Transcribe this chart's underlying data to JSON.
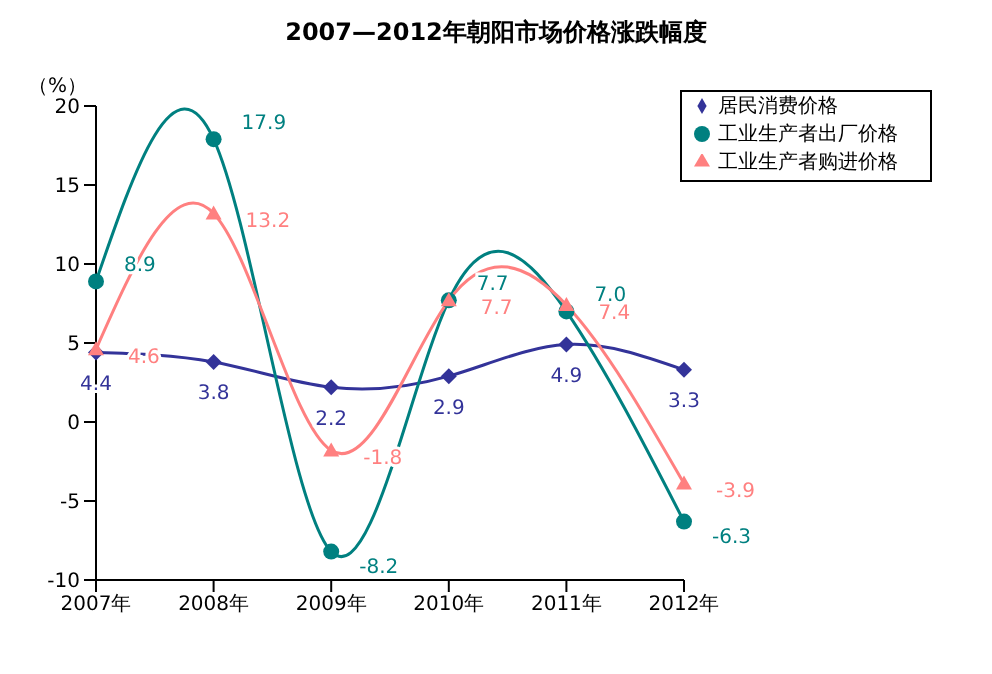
{
  "chart_data": {
    "type": "line",
    "title": "2007—2012年朝阳市场价格涨跌幅度",
    "ylabel": "（%）",
    "categories": [
      "2007年",
      "2008年",
      "2009年",
      "2010年",
      "2011年",
      "2012年"
    ],
    "series": [
      {
        "name": "居民消费价格",
        "color": "#333399",
        "marker": "diamond",
        "values": [
          4.4,
          3.8,
          2.2,
          2.9,
          4.9,
          3.3
        ],
        "value_labels": [
          "4.4",
          "3.8",
          "2.2",
          "2.9",
          "4.9",
          "3.3"
        ]
      },
      {
        "name": "工业生产者出厂价格",
        "color": "#008080",
        "marker": "circle",
        "values": [
          8.9,
          17.9,
          -8.2,
          7.7,
          7.0,
          -6.3
        ],
        "value_labels": [
          "8.9",
          "17.9",
          "-8.2",
          "7.7",
          "7.0",
          "-6.3"
        ]
      },
      {
        "name": "工业生产者购进价格",
        "color": "#ff8080",
        "marker": "triangle",
        "values": [
          4.6,
          13.2,
          -1.8,
          7.7,
          7.4,
          -3.9
        ],
        "value_labels": [
          "4.6",
          "13.2",
          "-1.8",
          "7.7",
          "7.4",
          "-3.9"
        ]
      }
    ],
    "ylim": [
      -10,
      20
    ],
    "yticks": [
      -10,
      -5,
      0,
      5,
      10,
      15,
      20
    ],
    "legend": "top right",
    "line_style": "solid"
  }
}
